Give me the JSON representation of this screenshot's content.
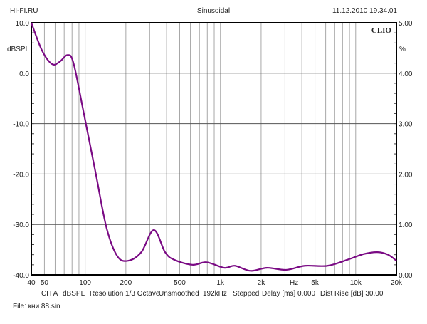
{
  "header": {
    "left": "HI-FI.RU",
    "center": "Sinusoidal",
    "right": "11.12.2010 19.34.01"
  },
  "brand": "CLIO",
  "footer": {
    "settings": [
      "CH A",
      "dBSPL",
      "Resolution 1/3 Octave",
      "Unsmoothed",
      "192kHz",
      "Stepped",
      "Delay [ms] 0.000",
      "Dist Rise [dB] 30.00"
    ],
    "file": "File: кни 88.sin"
  },
  "chart_data": {
    "type": "line",
    "title": "Sinusoidal",
    "xlabel": "Hz",
    "ylabel": "dBSPL",
    "y2label": "%",
    "xscale": "log",
    "xlim": [
      40,
      20000
    ],
    "ylim": [
      -40,
      10
    ],
    "y2lim": [
      0,
      5
    ],
    "grid": true,
    "x_ticks": [
      {
        "v": 40,
        "l": "40"
      },
      {
        "v": 50,
        "l": "50"
      },
      {
        "v": 100,
        "l": "100"
      },
      {
        "v": 200,
        "l": "200"
      },
      {
        "v": 500,
        "l": "500"
      },
      {
        "v": 1000,
        "l": "1k"
      },
      {
        "v": 2000,
        "l": "2k"
      },
      {
        "v": 3500,
        "l": "Hz"
      },
      {
        "v": 5000,
        "l": "5k"
      },
      {
        "v": 10000,
        "l": "10k"
      },
      {
        "v": 20000,
        "l": "20k"
      }
    ],
    "y_ticks": [
      "10.0",
      "0.0",
      "-10.0",
      "-20.0",
      "-30.0",
      "-40.0"
    ],
    "y_tick_values": [
      10,
      0,
      -10,
      -20,
      -30,
      -40
    ],
    "y2_ticks": [
      "5.00",
      "4.00",
      "3.00",
      "2.00",
      "1.00",
      "0.00"
    ],
    "series": [
      {
        "name": "CH A",
        "color": "#7a0a84",
        "x": [
          40,
          48,
          57,
          65,
          74,
          82,
          98,
          120,
          144,
          173,
          208,
          260,
          322,
          390,
          455,
          620,
          790,
          1067,
          1280,
          1670,
          2208,
          3063,
          4200,
          6190,
          8900,
          11350,
          14450,
          17340,
          20000
        ],
        "y": [
          10,
          4.5,
          1.8,
          2.3,
          3.6,
          2.0,
          -8.1,
          -20,
          -30.7,
          -36.3,
          -37.2,
          -35.5,
          -31.1,
          -35.5,
          -37,
          -38,
          -37.5,
          -38.6,
          -38.2,
          -39.2,
          -38.6,
          -39,
          -38.2,
          -38.2,
          -36.9,
          -35.9,
          -35.5,
          -36,
          -37.2
        ]
      }
    ]
  }
}
